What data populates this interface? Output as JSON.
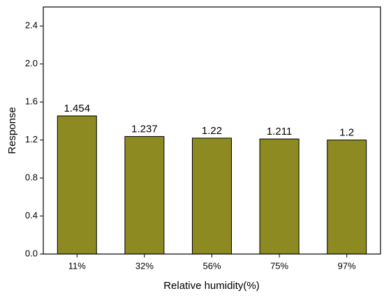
{
  "chart_data": {
    "type": "bar",
    "x_label": "Relative humidity(%)",
    "y_label": "Response",
    "categories": [
      "11%",
      "32%",
      "56%",
      "75%",
      "97%"
    ],
    "values": [
      1.454,
      1.237,
      1.22,
      1.211,
      1.2
    ],
    "color": "#8c8a20",
    "ylim": [
      0,
      2.6
    ],
    "yticks": [
      {
        "value": 0,
        "label": "0.0"
      },
      0.4,
      0.8,
      1.2,
      1.6,
      {
        "value": 2,
        "label": "2.0"
      },
      2.4
    ],
    "grid": false
  }
}
